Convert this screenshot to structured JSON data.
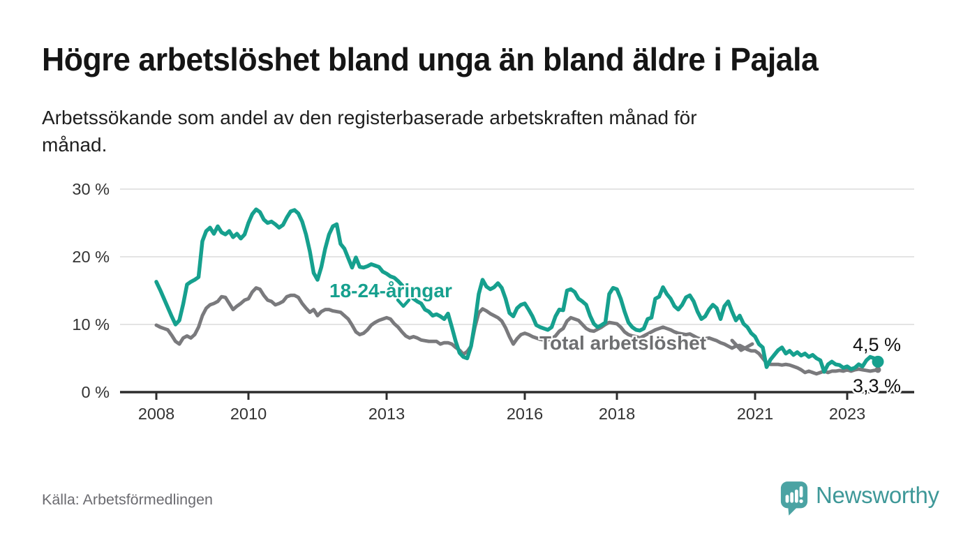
{
  "header": {
    "title": "Högre arbetslöshet bland unga än bland äldre i Pajala",
    "subtitle_line1": "Arbetssökande som andel av den registerbaserade arbetskraften månad för",
    "subtitle_line2": "månad."
  },
  "chart_data": {
    "type": "line",
    "unit": "%",
    "frequency": "monthly",
    "x_start_year": 2008,
    "ylim": [
      0,
      30
    ],
    "grid": "horizontal",
    "legend_position": "inline-labels",
    "y_ticks": [
      {
        "value": 0,
        "label": "0 %"
      },
      {
        "value": 10,
        "label": "10 %"
      },
      {
        "value": 20,
        "label": "20 %"
      },
      {
        "value": 30,
        "label": "30 %"
      }
    ],
    "x_ticks": [
      {
        "year": 2008,
        "label": "2008"
      },
      {
        "year": 2010,
        "label": "2010"
      },
      {
        "year": 2013,
        "label": "2013"
      },
      {
        "year": 2016,
        "label": "2016"
      },
      {
        "year": 2018,
        "label": "2018"
      },
      {
        "year": 2021,
        "label": "2021"
      },
      {
        "year": 2023,
        "label": "2023"
      }
    ],
    "series": [
      {
        "id": "youth",
        "name": "18-24-åringar",
        "color": "#16a08e",
        "label_color": "#16a08e",
        "line_width": 5.5,
        "end_dot_radius": 8.5,
        "end_label": "4,5 %",
        "values": [
          16.3,
          15.1,
          13.8,
          12.5,
          11.2,
          10.0,
          10.6,
          13.0,
          15.9,
          16.3,
          16.6,
          17.0,
          22.3,
          23.8,
          24.3,
          23.4,
          24.5,
          23.6,
          23.3,
          23.8,
          22.9,
          23.4,
          22.7,
          23.3,
          25.0,
          26.3,
          27.0,
          26.6,
          25.5,
          25.0,
          25.2,
          24.8,
          24.3,
          24.7,
          25.8,
          26.7,
          26.9,
          26.4,
          25.2,
          23.3,
          20.8,
          17.6,
          16.6,
          18.5,
          21.2,
          23.3,
          24.5,
          24.8,
          21.9,
          21.2,
          19.8,
          18.4,
          19.9,
          18.5,
          18.4,
          18.6,
          18.9,
          18.7,
          18.5,
          17.8,
          17.5,
          17.1,
          16.9,
          16.4,
          15.8,
          15.1,
          14.4,
          13.8,
          13.4,
          13.1,
          12.2,
          11.9,
          11.3,
          11.5,
          11.2,
          10.8,
          11.6,
          9.6,
          7.5,
          5.8,
          5.2,
          5.0,
          6.8,
          10.3,
          14.5,
          16.6,
          15.6,
          15.2,
          15.5,
          16.1,
          15.4,
          13.8,
          11.7,
          11.2,
          12.4,
          12.9,
          13.1,
          12.2,
          11.2,
          9.9,
          9.6,
          9.4,
          9.2,
          9.6,
          11.2,
          12.2,
          12.1,
          15.0,
          15.2,
          14.8,
          13.8,
          13.4,
          12.9,
          11.3,
          10.1,
          9.6,
          9.9,
          10.3,
          14.5,
          15.4,
          15.2,
          13.8,
          11.9,
          10.3,
          9.6,
          9.2,
          9.1,
          9.4,
          10.8,
          11.0,
          13.8,
          14.1,
          15.5,
          14.5,
          13.8,
          12.7,
          12.2,
          12.9,
          14.0,
          14.3,
          13.4,
          11.9,
          10.8,
          11.2,
          12.2,
          12.9,
          12.4,
          10.8,
          12.7,
          13.4,
          11.9,
          10.6,
          11.3,
          10.1,
          9.6,
          8.7,
          8.2,
          7.1,
          6.6,
          3.7,
          4.8,
          5.5,
          6.2,
          6.6,
          5.7,
          6.1,
          5.5,
          5.9,
          5.4,
          5.7,
          5.2,
          5.5,
          5.0,
          4.7,
          3.0,
          4.1,
          4.5,
          4.1,
          4.0,
          3.6,
          3.8,
          3.4,
          3.6,
          4.1,
          3.8,
          4.7,
          5.2,
          5.0,
          4.5
        ]
      },
      {
        "id": "total",
        "name": "Total arbetslöshet",
        "color": "#7a7a7d",
        "label_color": "#6e6f71",
        "line_width": 5,
        "end_dot_radius": 4.5,
        "end_label": "3,3 %",
        "values": [
          9.9,
          9.6,
          9.4,
          9.2,
          8.4,
          7.5,
          7.1,
          8.0,
          8.3,
          8.0,
          8.5,
          9.6,
          11.3,
          12.4,
          12.9,
          13.1,
          13.4,
          14.1,
          14.0,
          13.1,
          12.2,
          12.7,
          13.1,
          13.6,
          13.8,
          14.8,
          15.4,
          15.2,
          14.3,
          13.6,
          13.4,
          12.9,
          13.1,
          13.4,
          14.1,
          14.3,
          14.3,
          14.0,
          13.1,
          12.4,
          11.8,
          12.2,
          11.3,
          11.9,
          12.2,
          12.2,
          12.0,
          11.9,
          11.8,
          11.3,
          10.8,
          9.9,
          8.9,
          8.5,
          8.7,
          9.2,
          9.9,
          10.3,
          10.6,
          10.8,
          11.0,
          10.8,
          10.1,
          9.6,
          8.9,
          8.3,
          8.0,
          8.2,
          8.0,
          7.7,
          7.6,
          7.5,
          7.5,
          7.5,
          7.1,
          7.3,
          7.3,
          7.1,
          6.6,
          6.2,
          5.6,
          6.0,
          6.8,
          9.6,
          11.7,
          12.3,
          12.0,
          11.6,
          11.3,
          11.0,
          10.5,
          9.5,
          8.2,
          7.1,
          7.9,
          8.5,
          8.7,
          8.5,
          8.2,
          8.0,
          7.8,
          7.7,
          7.7,
          7.9,
          8.3,
          9.0,
          9.4,
          10.5,
          11.0,
          10.8,
          10.6,
          10.0,
          9.4,
          9.1,
          9.0,
          9.3,
          9.6,
          10.0,
          10.3,
          10.2,
          10.1,
          9.6,
          8.9,
          8.5,
          8.3,
          8.2,
          8.0,
          8.3,
          8.6,
          8.9,
          9.2,
          9.4,
          9.6,
          9.4,
          9.2,
          8.9,
          8.7,
          8.6,
          8.5,
          8.6,
          8.3,
          8.0,
          7.8,
          7.9,
          8.0,
          7.8,
          7.6,
          7.3,
          7.1,
          6.8,
          6.5,
          6.8,
          6.9,
          6.6,
          6.3,
          6.1,
          6.1,
          5.7,
          5.0,
          4.3,
          4.1,
          4.1,
          4.1,
          4.0,
          4.1,
          4.0,
          3.8,
          3.6,
          3.3,
          2.9,
          3.1,
          2.9,
          2.7,
          2.9,
          3.1,
          2.9,
          3.1,
          3.1,
          3.2,
          3.1,
          3.3,
          3.1,
          3.3,
          3.4,
          3.3,
          3.2,
          3.1,
          3.2,
          3.3
        ]
      }
    ]
  },
  "footer": {
    "source": "Källa: Arbetsförmedlingen",
    "logo_text": "Newsworthy"
  },
  "colors": {
    "axis": "#2d2d2d",
    "gridline": "#dcdcdc",
    "tick_text": "#333333",
    "background": "#ffffff",
    "logo_bubble": "#4ba3a3",
    "logo_text": "#3e9898"
  }
}
